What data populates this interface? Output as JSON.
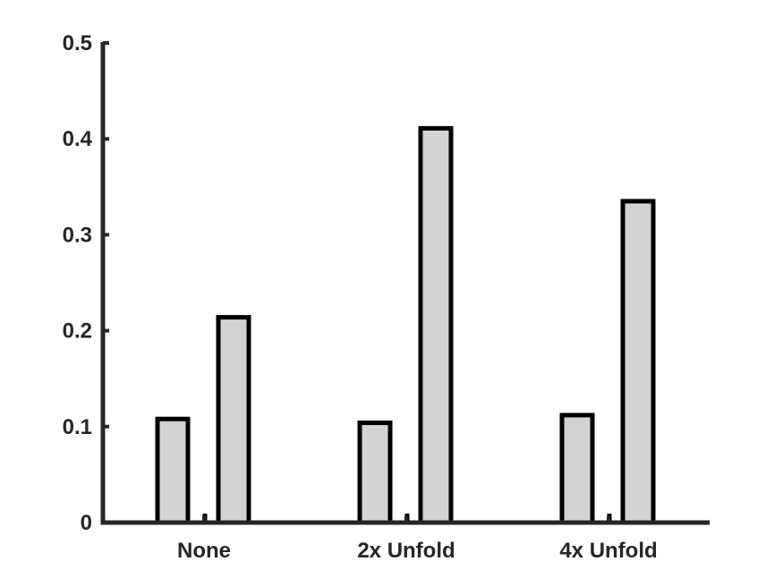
{
  "chart_data": {
    "type": "bar",
    "title": "",
    "xlabel": "",
    "ylabel": "",
    "categories": [
      "None",
      "2x Unfold",
      "4x Unfold"
    ],
    "series": [
      {
        "values": [
          0.108,
          0.104,
          0.112
        ]
      },
      {
        "values": [
          0.214,
          0.411,
          0.335
        ]
      }
    ],
    "ylim": [
      0,
      0.5
    ],
    "yticks": [
      "0",
      "0.1",
      "0.2",
      "0.3",
      "0.4",
      "0.5"
    ],
    "grid": false,
    "legend": "none",
    "colors": {
      "bar_fill": "#d3d3d3",
      "bar_edge": "#000000",
      "axis": "#262626"
    }
  }
}
